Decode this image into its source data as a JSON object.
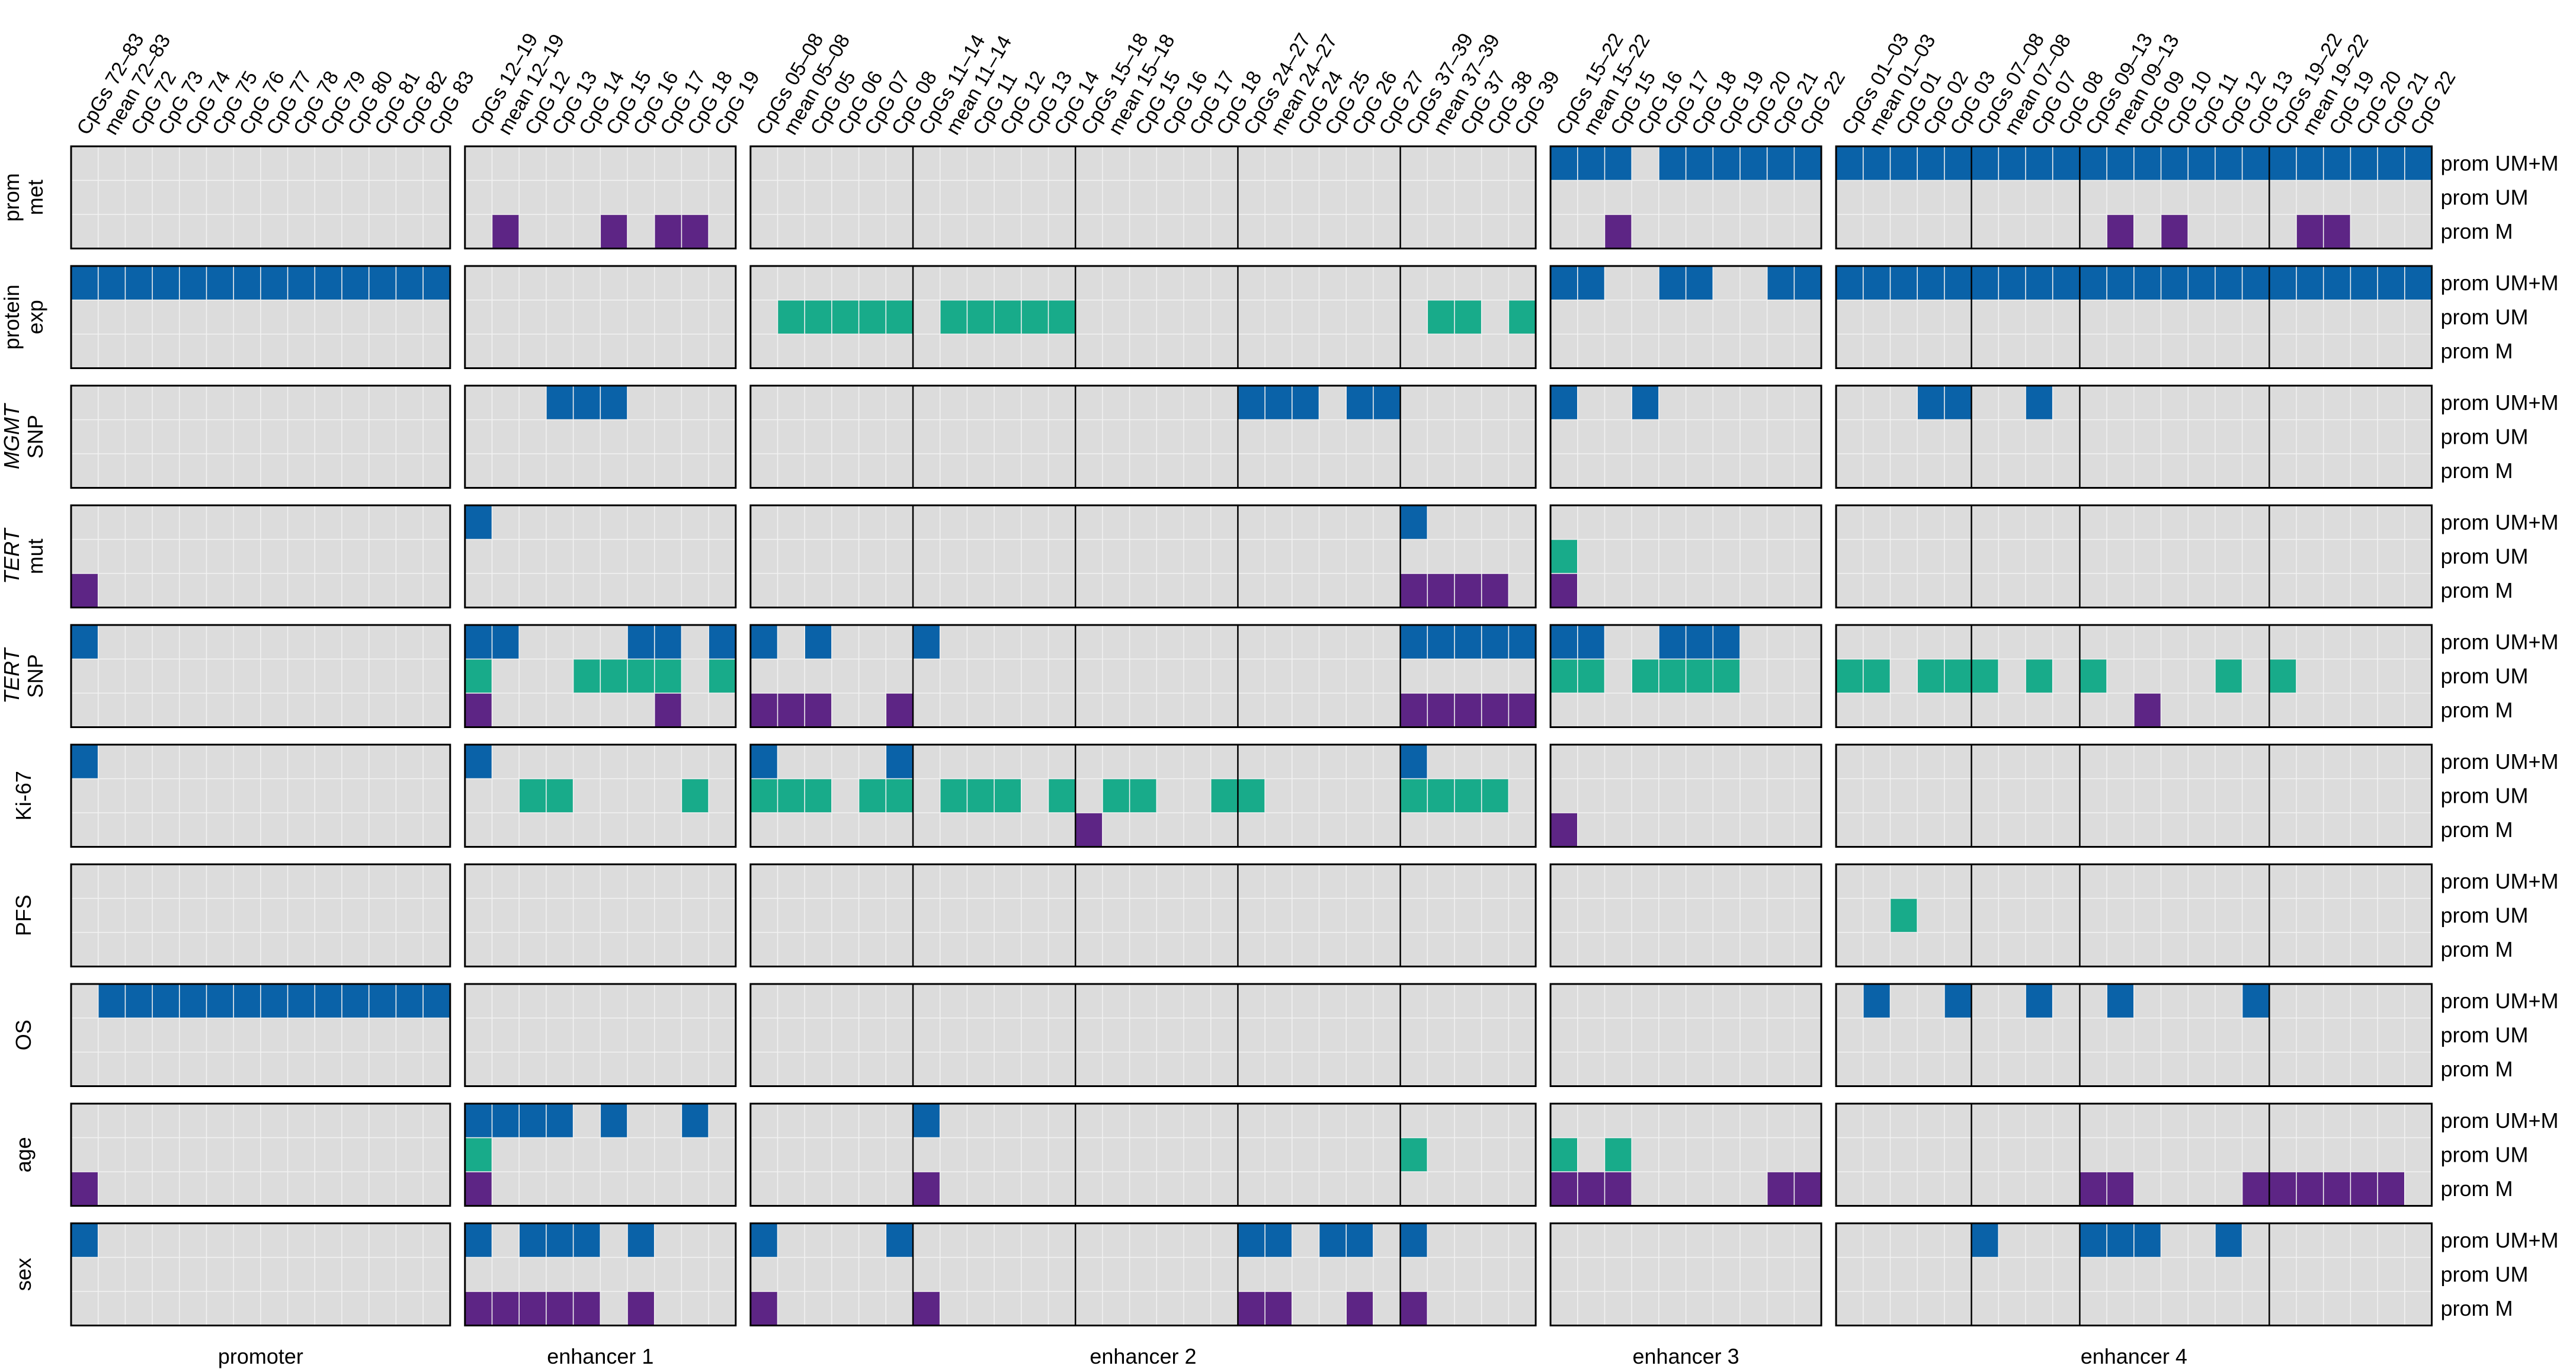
{
  "chart_data": {
    "type": "heatmap",
    "title": "",
    "colors": {
      "prom UM+M": "#0a62a8",
      "prom UM": "#18ab8a",
      "prom M": "#5d2585",
      "background": "#dcdcdc",
      "grid": "#f2f2f2",
      "border": "#000000"
    },
    "row_levels": [
      "prom UM+M",
      "prom UM",
      "prom M"
    ],
    "panels": [
      {
        "label": "promoter",
        "columns": [
          "CpGs 72–83",
          "mean 72–83",
          "CpG 72",
          "CpG 73",
          "CpG 74",
          "CpG 75",
          "CpG 76",
          "CpG 77",
          "CpG 78",
          "CpG 79",
          "CpG 80",
          "CpG 81",
          "CpG 82",
          "CpG 83"
        ],
        "separators": []
      },
      {
        "label": "enhancer 1",
        "columns": [
          "CpGs 12–19",
          "mean 12–19",
          "CpG 12",
          "CpG 13",
          "CpG 14",
          "CpG 15",
          "CpG 16",
          "CpG 17",
          "CpG 18",
          "CpG 19"
        ],
        "separators": []
      },
      {
        "label": "enhancer 2",
        "columns": [
          "CpGs 05–08",
          "mean 05–08",
          "CpG 05",
          "CpG 06",
          "CpG 07",
          "CpG 08",
          "CpGs 11–14",
          "mean 11–14",
          "CpG 11",
          "CpG 12",
          "CpG 13",
          "CpG 14",
          "CpGs 15–18",
          "mean 15–18",
          "CpG 15",
          "CpG 16",
          "CpG 17",
          "CpG 18",
          "CpGs 24–27",
          "mean 24–27",
          "CpG 24",
          "CpG 25",
          "CpG 26",
          "CpG 27",
          "CpGs 37–39",
          "mean 37–39",
          "CpG 37",
          "CpG 38",
          "CpG 39"
        ],
        "separators": [
          6,
          12,
          18,
          24
        ]
      },
      {
        "label": "enhancer 3",
        "columns": [
          "CpGs 15–22",
          "mean 15–22",
          "CpG 15",
          "CpG 16",
          "CpG 17",
          "CpG 18",
          "CpG 19",
          "CpG 20",
          "CpG 21",
          "CpG 22"
        ],
        "separators": []
      },
      {
        "label": "enhancer 4",
        "columns": [
          "CpGs 01–03",
          "mean 01–03",
          "CpG 01",
          "CpG 02",
          "CpG 03",
          "CpGs 07–08",
          "mean 07–08",
          "CpG 07",
          "CpG 08",
          "CpGs 09–13",
          "mean 09–13",
          "CpG 09",
          "CpG 10",
          "CpG 11",
          "CpG 12",
          "CpG 13",
          "CpGs 19–22",
          "mean 19–22",
          "CpG 19",
          "CpG 20",
          "CpG 21",
          "CpG 22"
        ],
        "separators": [
          5,
          9,
          16
        ]
      }
    ],
    "rows": [
      {
        "label": [
          "prom",
          "met"
        ],
        "italic": [
          false,
          false
        ],
        "cells": [
          [
            [],
            [],
            []
          ],
          [
            [],
            [],
            [
              1,
              5,
              7,
              8
            ]
          ],
          [
            [],
            [],
            []
          ],
          [
            [
              0,
              1,
              2,
              4,
              5,
              6,
              7,
              8,
              9
            ],
            [],
            [
              2
            ]
          ],
          [
            [
              0,
              1,
              2,
              3,
              4,
              5,
              6,
              7,
              8,
              9,
              10,
              11,
              12,
              13,
              14,
              15,
              16,
              17,
              18,
              19,
              20,
              21
            ],
            [],
            [
              10,
              12,
              17,
              18
            ]
          ]
        ]
      },
      {
        "label": [
          "protein",
          "exp"
        ],
        "italic": [
          false,
          false
        ],
        "cells": [
          [
            [
              0,
              1,
              2,
              3,
              4,
              5,
              6,
              7,
              8,
              9,
              10,
              11,
              12,
              13
            ],
            [],
            []
          ],
          [
            [],
            [],
            []
          ],
          [
            [],
            [
              1,
              2,
              3,
              4,
              5,
              7,
              8,
              9,
              10,
              11,
              25,
              26,
              28
            ],
            []
          ],
          [
            [
              0,
              1,
              4,
              5,
              8,
              9
            ],
            [],
            []
          ],
          [
            [
              0,
              1,
              2,
              3,
              4,
              5,
              6,
              7,
              8,
              9,
              10,
              11,
              12,
              13,
              14,
              15,
              16,
              17,
              18,
              19,
              20,
              21
            ],
            [],
            []
          ]
        ]
      },
      {
        "label": [
          "MGMT",
          "SNP"
        ],
        "italic": [
          true,
          false
        ],
        "cells": [
          [
            [],
            [],
            []
          ],
          [
            [
              3,
              4,
              5
            ],
            [],
            []
          ],
          [
            [
              18,
              19,
              20,
              22,
              23
            ],
            [],
            []
          ],
          [
            [
              0,
              3
            ],
            [],
            []
          ],
          [
            [
              3,
              4,
              7
            ],
            [],
            []
          ]
        ]
      },
      {
        "label": [
          "TERT",
          "mut"
        ],
        "italic": [
          true,
          false
        ],
        "cells": [
          [
            [],
            [],
            [
              0
            ]
          ],
          [
            [
              0
            ],
            [],
            []
          ],
          [
            [
              24
            ],
            [],
            [
              24,
              25,
              26,
              27
            ]
          ],
          [
            [],
            [
              0
            ],
            [
              0
            ]
          ],
          [
            [],
            [],
            []
          ]
        ]
      },
      {
        "label": [
          "TERT",
          "SNP"
        ],
        "italic": [
          true,
          false
        ],
        "cells": [
          [
            [
              0
            ],
            [],
            []
          ],
          [
            [
              0,
              1,
              6,
              7,
              9
            ],
            [
              0,
              4,
              5,
              6,
              7,
              9
            ],
            [
              0,
              7
            ]
          ],
          [
            [
              0,
              2,
              6,
              24,
              25,
              26,
              27,
              28
            ],
            [],
            [
              0,
              1,
              2,
              5,
              24,
              25,
              26,
              27,
              28
            ]
          ],
          [
            [
              0,
              1,
              4,
              5,
              6
            ],
            [
              0,
              1,
              3,
              4,
              5,
              6
            ],
            []
          ],
          [
            [],
            [
              0,
              1,
              3,
              4,
              5,
              7,
              9,
              14,
              16
            ],
            [
              11
            ]
          ]
        ]
      },
      {
        "label": [
          "Ki-67"
        ],
        "italic": [
          false
        ],
        "cells": [
          [
            [
              0
            ],
            [],
            []
          ],
          [
            [
              0
            ],
            [
              2,
              3,
              8
            ],
            []
          ],
          [
            [
              0,
              5,
              24
            ],
            [
              0,
              1,
              2,
              4,
              5,
              7,
              8,
              9,
              11,
              13,
              14,
              17,
              18,
              24,
              25,
              26,
              27
            ],
            [
              12
            ]
          ],
          [
            [],
            [],
            [
              0
            ]
          ],
          [
            [],
            [],
            []
          ]
        ]
      },
      {
        "label": [
          "PFS"
        ],
        "italic": [
          false
        ],
        "cells": [
          [
            [],
            [],
            []
          ],
          [
            [],
            [],
            []
          ],
          [
            [],
            [],
            []
          ],
          [
            [],
            [],
            []
          ],
          [
            [],
            [
              2
            ],
            []
          ]
        ]
      },
      {
        "label": [
          "OS"
        ],
        "italic": [
          false
        ],
        "cells": [
          [
            [
              1,
              2,
              3,
              4,
              5,
              6,
              7,
              8,
              9,
              10,
              11,
              12,
              13
            ],
            [],
            []
          ],
          [
            [],
            [],
            []
          ],
          [
            [],
            [],
            []
          ],
          [
            [],
            [],
            []
          ],
          [
            [
              1,
              4,
              7,
              10,
              15
            ],
            [],
            []
          ]
        ]
      },
      {
        "label": [
          "age"
        ],
        "italic": [
          false
        ],
        "cells": [
          [
            [],
            [],
            [
              0
            ]
          ],
          [
            [
              0,
              1,
              2,
              3,
              5,
              8
            ],
            [
              0
            ],
            [
              0
            ]
          ],
          [
            [
              6
            ],
            [
              24
            ],
            [
              6
            ]
          ],
          [
            [],
            [
              0,
              2
            ],
            [
              0,
              1,
              2,
              8,
              9
            ]
          ],
          [
            [],
            [],
            [
              9,
              10,
              15,
              16,
              17,
              18,
              19,
              20
            ]
          ]
        ]
      },
      {
        "label": [
          "sex"
        ],
        "italic": [
          false
        ],
        "cells": [
          [
            [
              0
            ],
            [],
            []
          ],
          [
            [
              0,
              2,
              3,
              4,
              6
            ],
            [],
            [
              0,
              1,
              2,
              3,
              4,
              6
            ]
          ],
          [
            [
              0,
              5,
              18,
              19,
              21,
              22,
              24
            ],
            [],
            [
              0,
              6,
              18,
              19,
              22,
              24
            ]
          ],
          [
            [],
            [],
            []
          ],
          [
            [
              5,
              9,
              10,
              11,
              14
            ],
            [],
            []
          ]
        ]
      }
    ]
  }
}
